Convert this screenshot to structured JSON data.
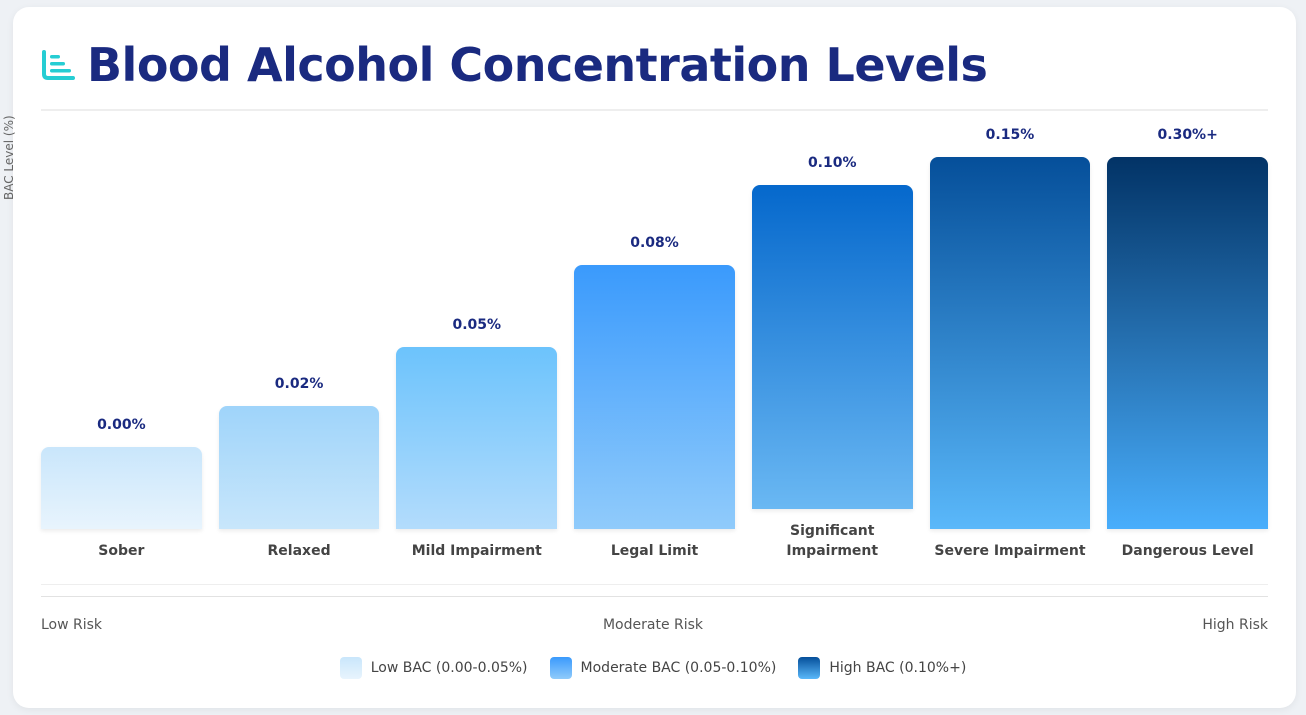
{
  "chart_data": {
    "type": "bar",
    "title": "Blood Alcohol Concentration Levels",
    "ylabel": "BAC Level (%)",
    "categories": [
      "Sober",
      "Relaxed",
      "Mild Impairment",
      "Legal Limit",
      "Significant Impairment",
      "Severe Impairment",
      "Dangerous Level"
    ],
    "value_labels": [
      "0.00%",
      "0.02%",
      "0.05%",
      "0.08%",
      "0.10%",
      "0.15%",
      "0.30%+"
    ],
    "values": [
      0.0,
      0.02,
      0.05,
      0.08,
      0.1,
      0.15,
      0.3
    ],
    "bar_level_percent": [
      22,
      33,
      49,
      71,
      87,
      100,
      100
    ],
    "colors": [
      [
        "#c9e6fb",
        "#e8f4fd"
      ],
      [
        "#9fd4fa",
        "#c8e6fb"
      ],
      [
        "#6cc3fc",
        "#b3dcfc"
      ],
      [
        "#3a9afc",
        "#90cbfb"
      ],
      [
        "#0568cc",
        "#6ab8f3"
      ],
      [
        "#054f9a",
        "#5ab8fa"
      ],
      [
        "#023366",
        "#49aefc"
      ]
    ],
    "grid": false,
    "legend_placement": "bottom"
  },
  "risk_scale": [
    "Low Risk",
    "Moderate Risk",
    "High Risk"
  ],
  "legend": [
    {
      "label": "Low BAC (0.00-0.05%)",
      "colors": [
        "#c9e6fb",
        "#e8f4fd"
      ]
    },
    {
      "label": "Moderate BAC (0.05-0.10%)",
      "colors": [
        "#3a9afc",
        "#90cbfb"
      ]
    },
    {
      "label": "High BAC (0.10%+)",
      "colors": [
        "#054f9a",
        "#5ab8fa"
      ]
    }
  ],
  "icon": "bar-chart-icon",
  "accent": "#26cdd3"
}
